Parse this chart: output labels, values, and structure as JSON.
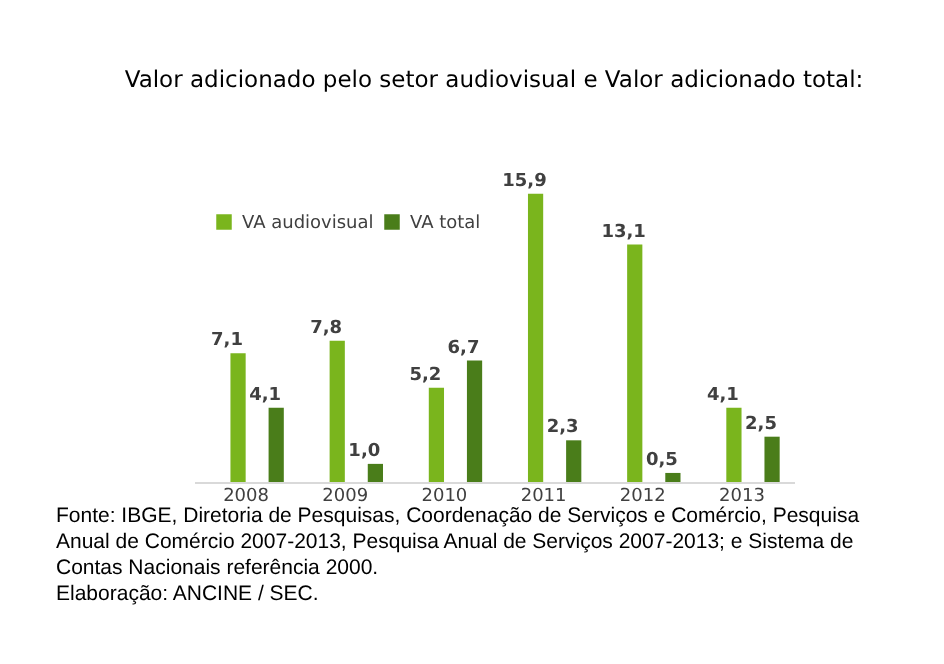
{
  "chart_data": {
    "type": "bar",
    "title": "Valor adicionado pelo setor audiovisual e Valor adicionado total:",
    "categories": [
      "2008",
      "2009",
      "2010",
      "2011",
      "2012",
      "2013"
    ],
    "series": [
      {
        "name": "VA audiovisual",
        "color": "#7ab51d",
        "values": [
          7.1,
          7.8,
          5.2,
          15.9,
          13.1,
          4.1
        ],
        "value_labels": [
          "7,1",
          "7,8",
          "5,2",
          "15,9",
          "13,1",
          "4,1"
        ]
      },
      {
        "name": "VA total",
        "color": "#4a7d1a",
        "values": [
          4.1,
          1.0,
          6.7,
          2.3,
          0.5,
          2.5
        ],
        "value_labels": [
          "4,1",
          "1,0",
          "6,7",
          "2,3",
          "0,5",
          "2,5"
        ]
      }
    ],
    "data_labels": true,
    "tick_labels": "x",
    "legend": "top left",
    "annotations": [
      "Fonte: IBGE, Diretoria de Pesquisas, Coordenação de Serviços e Comércio, Pesquisa Anual de Comércio 2007-2013, Pesquisa Anual de Serviços 2007-2013; e Sistema de Contas Nacionais referência 2000.",
      "Elaboração: ANCINE / SEC."
    ]
  }
}
